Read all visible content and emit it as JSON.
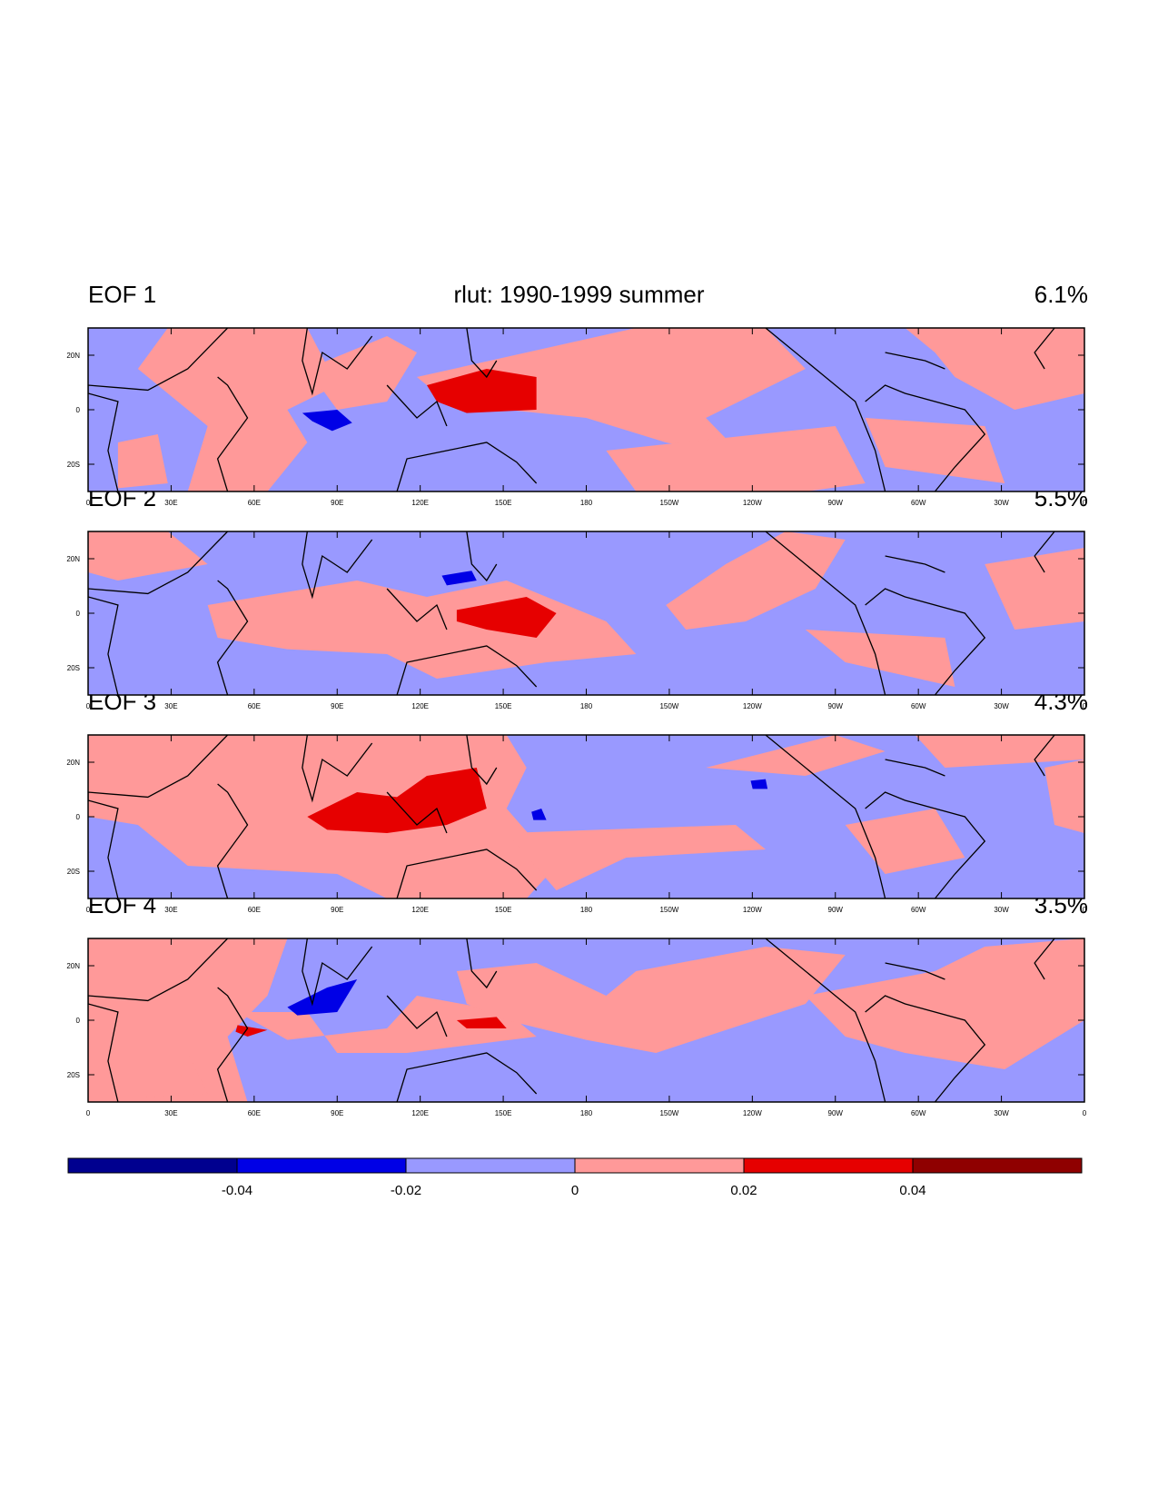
{
  "figure": {
    "title": "rlut: 1990-1999 summer",
    "colors": {
      "neg_strong": "#00008f",
      "neg_mid": "#0000e6",
      "neg_light": "#9999ff",
      "pos_light": "#ff9999",
      "pos_mid": "#e60000",
      "pos_strong": "#8f0000",
      "coast": "#000000"
    }
  },
  "axes": {
    "lon_ticks": [
      "0",
      "30E",
      "60E",
      "90E",
      "120E",
      "150E",
      "180",
      "150W",
      "120W",
      "90W",
      "60W",
      "30W",
      "0"
    ],
    "lat_ticks": [
      "20N",
      "0",
      "20S"
    ],
    "lat_values": [
      20,
      0,
      -20
    ],
    "lat_range": [
      -30,
      30
    ]
  },
  "panels": [
    {
      "label": "EOF 1",
      "variance": "6.1%"
    },
    {
      "label": "EOF 2",
      "variance": "5.5%"
    },
    {
      "label": "EOF 3",
      "variance": "4.3%"
    },
    {
      "label": "EOF 4",
      "variance": "3.5%"
    }
  ],
  "colorbar": {
    "labels": [
      "-0.04",
      "-0.02",
      "0",
      "0.02",
      "0.04"
    ],
    "bins": [
      "neg_strong",
      "neg_mid",
      "neg_light",
      "pos_light",
      "pos_mid",
      "pos_strong"
    ]
  }
}
